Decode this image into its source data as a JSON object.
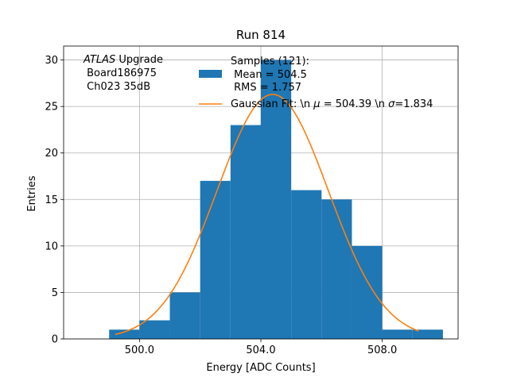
{
  "chart_data": {
    "type": "bar",
    "title": "Run 814",
    "xlabel": "Energy [ADC Counts]",
    "ylabel": "Entries",
    "xlim": [
      497.5,
      510.5
    ],
    "ylim": [
      0,
      31.5
    ],
    "grid": true,
    "x_ticks": [
      500.0,
      504.0,
      508.0
    ],
    "x_tick_labels": [
      "500.0",
      "504.0",
      "508.0"
    ],
    "y_ticks": [
      0,
      5,
      10,
      15,
      20,
      25,
      30
    ],
    "y_tick_labels": [
      "0",
      "5",
      "10",
      "15",
      "20",
      "25",
      "30"
    ],
    "bin_edges": [
      499,
      500,
      501,
      502,
      503,
      504,
      505,
      506,
      507,
      508,
      509,
      510
    ],
    "values": [
      1,
      2,
      5,
      17,
      23,
      30,
      16,
      15,
      10,
      1,
      1
    ],
    "series": [
      {
        "name": "Samples (121):\n Mean = 504.5\n RMS = 1.757",
        "kind": "histogram",
        "color": "#1f77b4"
      },
      {
        "name": "Gaussian Fit: \\n $\\mu$ = 504.39 \\n $\\sigma$=1.834",
        "kind": "line",
        "color": "#ff7f0e",
        "mu": 504.39,
        "sigma": 1.834,
        "amplitude": 26.3,
        "x_range": [
          499.2,
          509.2
        ]
      }
    ],
    "legend_lines": {
      "samples": [
        "Samples (121):",
        " Mean = 504.5",
        " RMS = 1.757"
      ],
      "fit_prefix": "Gaussian Fit: \\n ",
      "fit_mu": "μ",
      "fit_mid": " = 504.39 \\n ",
      "fit_sigma": "σ",
      "fit_suffix": "=1.834"
    },
    "legend_placement": "top-right",
    "annotation": {
      "italic": "ATLAS",
      "rest": " Upgrade",
      "line2": " Board186975",
      "line3": " Ch023 35dB"
    }
  }
}
